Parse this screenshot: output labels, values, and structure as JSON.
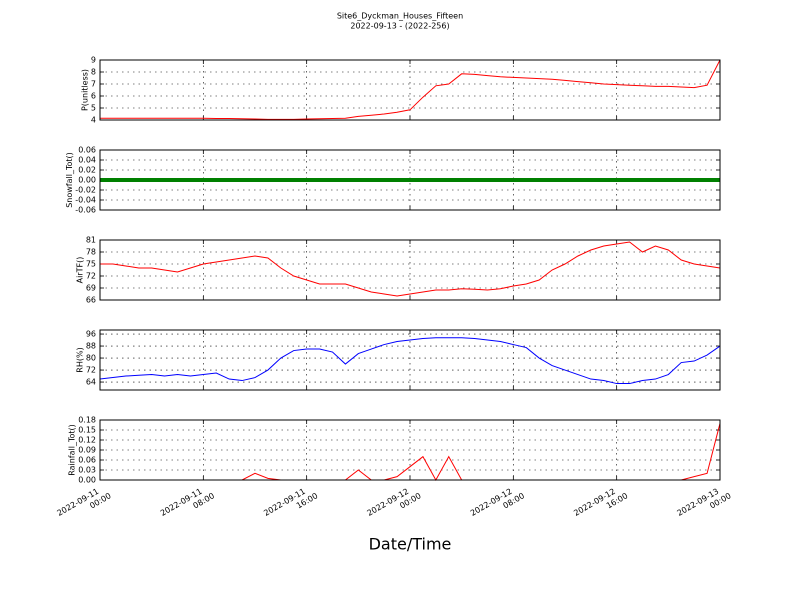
{
  "chart_data": {
    "type": "line",
    "title": "Site6_Dyckman_Houses_Fifteen",
    "subtitle": "2022-09-13 - (2022-256)",
    "xlabel": "Date/Time",
    "grid": true,
    "xlim": [
      "2022-09-11 00:00",
      "2022-09-13 00:00"
    ],
    "xticks": [
      "2022-09-11 00:00",
      "2022-09-11 08:00",
      "2022-09-11 16:00",
      "2022-09-12 00:00",
      "2022-09-12 08:00",
      "2022-09-12 16:00",
      "2022-09-13 00:00"
    ],
    "x": [
      "2022-09-11 00:00",
      "2022-09-11 01:00",
      "2022-09-11 02:00",
      "2022-09-11 03:00",
      "2022-09-11 04:00",
      "2022-09-11 05:00",
      "2022-09-11 06:00",
      "2022-09-11 07:00",
      "2022-09-11 08:00",
      "2022-09-11 09:00",
      "2022-09-11 10:00",
      "2022-09-11 11:00",
      "2022-09-11 12:00",
      "2022-09-11 13:00",
      "2022-09-11 14:00",
      "2022-09-11 15:00",
      "2022-09-11 16:00",
      "2022-09-11 17:00",
      "2022-09-11 18:00",
      "2022-09-11 19:00",
      "2022-09-11 20:00",
      "2022-09-11 21:00",
      "2022-09-11 22:00",
      "2022-09-11 23:00",
      "2022-09-12 00:00",
      "2022-09-12 01:00",
      "2022-09-12 02:00",
      "2022-09-12 03:00",
      "2022-09-12 04:00",
      "2022-09-12 05:00",
      "2022-09-12 06:00",
      "2022-09-12 07:00",
      "2022-09-12 08:00",
      "2022-09-12 09:00",
      "2022-09-12 10:00",
      "2022-09-12 11:00",
      "2022-09-12 12:00",
      "2022-09-12 13:00",
      "2022-09-12 14:00",
      "2022-09-12 15:00",
      "2022-09-12 16:00",
      "2022-09-12 17:00",
      "2022-09-12 18:00",
      "2022-09-12 19:00",
      "2022-09-12 20:00",
      "2022-09-12 21:00",
      "2022-09-12 22:00",
      "2022-09-12 23:00",
      "2022-09-13 00:00"
    ],
    "panels": [
      {
        "ylabel": "P(unitless)",
        "ylim": [
          4,
          9
        ],
        "yticks": [
          4,
          5,
          6,
          7,
          8,
          9
        ],
        "series": [
          {
            "name": "P",
            "color": "#ff0000",
            "values": [
              4.15,
              4.15,
              4.15,
              4.15,
              4.15,
              4.15,
              4.15,
              4.15,
              4.15,
              4.12,
              4.12,
              4.1,
              4.08,
              4.05,
              4.05,
              4.05,
              4.08,
              4.1,
              4.12,
              4.15,
              4.3,
              4.4,
              4.5,
              4.65,
              4.85,
              5.9,
              6.85,
              7.0,
              7.85,
              7.8,
              7.7,
              7.6,
              7.55,
              7.5,
              7.45,
              7.4,
              7.3,
              7.2,
              7.1,
              7.0,
              6.95,
              6.9,
              6.85,
              6.8,
              6.8,
              6.75,
              6.7,
              6.9,
              9.0
            ]
          }
        ]
      },
      {
        "ylabel": "Snowfall_Tot()",
        "ylim": [
          -0.06,
          0.06
        ],
        "yticks": [
          -0.06,
          -0.04,
          -0.02,
          {
            "value": 0,
            "label": "0.00"
          },
          0.02,
          0.04,
          0.06
        ],
        "series": [
          {
            "name": "Snowfall_Tot",
            "color": "#008000",
            "values": [
              0,
              0,
              0,
              0,
              0,
              0,
              0,
              0,
              0,
              0,
              0,
              0,
              0,
              0,
              0,
              0,
              0,
              0,
              0,
              0,
              0,
              0,
              0,
              0,
              0,
              0,
              0,
              0,
              0,
              0,
              0,
              0,
              0,
              0,
              0,
              0,
              0,
              0,
              0,
              0,
              0,
              0,
              0,
              0,
              0,
              0,
              0,
              0,
              0
            ]
          }
        ]
      },
      {
        "ylabel": "AirTF()",
        "ylim": [
          66,
          81
        ],
        "yticks": [
          66,
          69,
          72,
          75,
          78,
          81
        ],
        "series": [
          {
            "name": "AirTF",
            "color": "#ff0000",
            "values": [
              75,
              75,
              74.5,
              74,
              74,
              73.5,
              73,
              74,
              75,
              75.5,
              76,
              76.5,
              77,
              76.5,
              74,
              72,
              71,
              70,
              70,
              70,
              69,
              68,
              67.5,
              67,
              67.5,
              68,
              68.5,
              68.5,
              68.8,
              68.7,
              68.5,
              68.8,
              69.5,
              70,
              71,
              73.5,
              75,
              77,
              78.5,
              79.5,
              80,
              80.5,
              78,
              79.5,
              78.5,
              76,
              75,
              74.5,
              74
            ]
          }
        ]
      },
      {
        "ylabel": "RH(%)",
        "ylim": [
          58.7,
          98.7
        ],
        "yticks": [
          64,
          72,
          80,
          88,
          96
        ],
        "series": [
          {
            "name": "RH",
            "color": "#0000ff",
            "values": [
              66,
              67,
              68,
              68.5,
              69,
              68,
              69,
              68,
              69,
              70,
              66,
              65,
              67,
              72,
              80,
              85,
              86,
              86,
              84,
              76,
              83,
              86,
              89,
              91,
              92,
              93,
              93.5,
              93.5,
              93.5,
              93,
              92,
              91,
              89,
              87,
              80,
              75,
              72,
              69,
              66,
              65,
              63,
              63,
              65,
              66,
              69,
              77,
              78,
              82,
              88
            ]
          }
        ]
      },
      {
        "ylabel": "Rainfall_Tot()",
        "ylim": [
          0,
          0.18
        ],
        "yticks": [
          {
            "value": 0,
            "label": "0.00"
          },
          0.03,
          0.06,
          0.09,
          0.12,
          0.15,
          0.18
        ],
        "series": [
          {
            "name": "Rainfall_Tot",
            "color": "#ff0000",
            "values": [
              0,
              0,
              0,
              0,
              0,
              0,
              0,
              0,
              0,
              0,
              0,
              0,
              0.02,
              0.005,
              0,
              0,
              0,
              0,
              0,
              0,
              0.03,
              0,
              0,
              0.01,
              0.04,
              0.07,
              0,
              0.07,
              0,
              0,
              0,
              0,
              0,
              0,
              0,
              0,
              0,
              0,
              0,
              0,
              0,
              0,
              0,
              0,
              0,
              0,
              0.01,
              0.02,
              0.17
            ]
          }
        ]
      }
    ]
  }
}
